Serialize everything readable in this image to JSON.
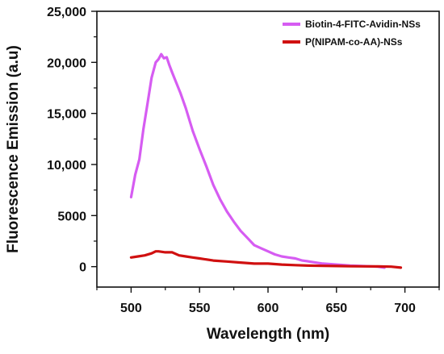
{
  "chart_data": {
    "type": "line",
    "title": "",
    "xlabel": "Wavelength (nm)",
    "ylabel": "Fluorescence Emission (a.u)",
    "xlim": [
      475,
      725
    ],
    "ylim": [
      -2000,
      25000
    ],
    "x_ticks": [
      500,
      550,
      600,
      650,
      700
    ],
    "x_tick_labels": [
      "500",
      "550",
      "600",
      "650",
      "700"
    ],
    "y_ticks": [
      0,
      5000,
      10000,
      15000,
      20000,
      25000
    ],
    "y_tick_labels": [
      "0",
      "5000",
      "10,000",
      "15,000",
      "20,000",
      "25,000"
    ],
    "grid": false,
    "legend": "top-right",
    "series": [
      {
        "name": "Biotin-4-FITC-Avidin-NSs",
        "color": "#d65cf2",
        "x": [
          500,
          503,
          506,
          509,
          512,
          515,
          518,
          520,
          522,
          524,
          526,
          528,
          530,
          533,
          536,
          540,
          545,
          550,
          555,
          560,
          565,
          570,
          575,
          580,
          585,
          590,
          595,
          600,
          605,
          610,
          615,
          620,
          625,
          630,
          640,
          650,
          660,
          670,
          680,
          685
        ],
        "y": [
          6800,
          9000,
          10500,
          13500,
          16000,
          18500,
          20000,
          20300,
          20800,
          20400,
          20500,
          19700,
          19000,
          18000,
          17000,
          15500,
          13300,
          11500,
          9800,
          8000,
          6600,
          5400,
          4400,
          3500,
          2800,
          2100,
          1800,
          1500,
          1200,
          1000,
          900,
          800,
          600,
          500,
          300,
          200,
          100,
          50,
          0,
          -100
        ]
      },
      {
        "name": "P(NIPAM-co-AA)-NSs",
        "color": "#d01010",
        "x": [
          500,
          505,
          510,
          515,
          518,
          520,
          525,
          530,
          535,
          540,
          545,
          550,
          560,
          570,
          580,
          590,
          600,
          610,
          620,
          630,
          640,
          650,
          660,
          670,
          680,
          690,
          697
        ],
        "y": [
          900,
          1000,
          1100,
          1300,
          1500,
          1500,
          1400,
          1400,
          1100,
          1000,
          900,
          800,
          600,
          500,
          400,
          300,
          300,
          200,
          150,
          100,
          80,
          60,
          40,
          30,
          20,
          0,
          -100
        ]
      }
    ]
  }
}
